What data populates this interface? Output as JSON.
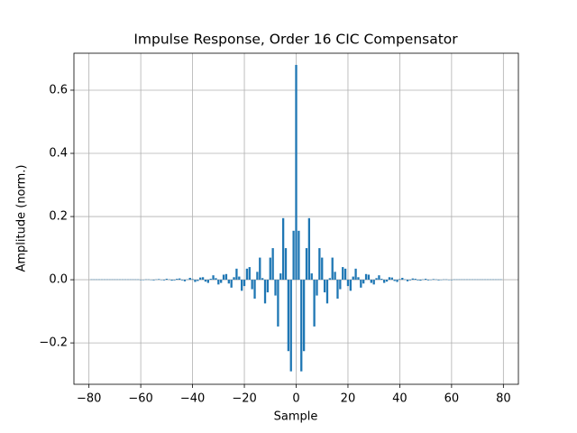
{
  "chart_data": {
    "type": "bar",
    "title": "Impulse Response, Order 16 CIC Compensator",
    "xlabel": "Sample",
    "ylabel": "Amplitude (norm.)",
    "color": "#1f77b4",
    "grid": true,
    "xlim": [
      -85.8,
      85.8
    ],
    "ylim": [
      -0.331,
      0.717
    ],
    "xticks": [
      {
        "value": -80,
        "label": "−80"
      },
      {
        "value": -60,
        "label": "−60"
      },
      {
        "value": -40,
        "label": "−40"
      },
      {
        "value": -20,
        "label": "−20"
      },
      0,
      20,
      40,
      60,
      80
    ],
    "yticks": [
      {
        "value": -0.2,
        "label": "−0.2"
      },
      {
        "value": 0,
        "label": "0.0"
      },
      0.2,
      0.4,
      0.6
    ],
    "x": [
      -79,
      -78,
      -77,
      -76,
      -75,
      -74,
      -73,
      -72,
      -71,
      -70,
      -69,
      -68,
      -67,
      -66,
      -65,
      -64,
      -63,
      -62,
      -61,
      -60,
      -59,
      -58,
      -57,
      -56,
      -55,
      -54,
      -53,
      -52,
      -51,
      -50,
      -49,
      -48,
      -47,
      -46,
      -45,
      -44,
      -43,
      -42,
      -41,
      -40,
      -39,
      -38,
      -37,
      -36,
      -35,
      -34,
      -33,
      -32,
      -31,
      -30,
      -29,
      -28,
      -27,
      -26,
      -25,
      -24,
      -23,
      -22,
      -21,
      -20,
      -19,
      -18,
      -17,
      -16,
      -15,
      -14,
      -13,
      -12,
      -11,
      -10,
      -9,
      -8,
      -7,
      -6,
      -5,
      -4,
      -3,
      -2,
      -1,
      0,
      1,
      2,
      3,
      4,
      5,
      6,
      7,
      8,
      9,
      10,
      11,
      12,
      13,
      14,
      15,
      16,
      17,
      18,
      19,
      20,
      21,
      22,
      23,
      24,
      25,
      26,
      27,
      28,
      29,
      30,
      31,
      32,
      33,
      34,
      35,
      36,
      37,
      38,
      39,
      40,
      41,
      42,
      43,
      44,
      45,
      46,
      47,
      48,
      49,
      50,
      51,
      52,
      53,
      54,
      55,
      56,
      57,
      58,
      59,
      60,
      61,
      62,
      63,
      64,
      65,
      66,
      67,
      68,
      69,
      70,
      71,
      72,
      73,
      74,
      75,
      76,
      77,
      78,
      79
    ],
    "values": [
      0.001,
      0.001,
      0.001,
      0.001,
      0.001,
      0.001,
      0.001,
      0.001,
      0.001,
      0.001,
      0.001,
      0.001,
      0.001,
      0.001,
      0.001,
      0.001,
      0.001,
      0.001,
      0.001,
      -0.001,
      -0.001,
      0.001,
      0.001,
      -0.001,
      -0.002,
      0.001,
      0.002,
      -0.001,
      -0.002,
      0.003,
      0.001,
      -0.003,
      -0.002,
      0.003,
      0.004,
      -0.002,
      -0.005,
      0.001,
      0.006,
      0.002,
      -0.007,
      -0.004,
      0.007,
      0.008,
      -0.006,
      -0.01,
      0.003,
      0.014,
      0.005,
      -0.015,
      -0.01,
      0.016,
      0.018,
      -0.012,
      -0.025,
      0.008,
      0.035,
      0.01,
      -0.035,
      -0.02,
      0.035,
      0.04,
      -0.03,
      -0.06,
      0.025,
      0.07,
      0.005,
      -0.075,
      -0.04,
      0.07,
      0.1,
      -0.05,
      -0.148,
      0.02,
      0.195,
      0.1,
      -0.226,
      -0.29,
      0.155,
      0.68,
      0.155,
      -0.29,
      -0.226,
      0.1,
      0.195,
      0.02,
      -0.148,
      -0.05,
      0.1,
      0.07,
      -0.04,
      -0.075,
      0.005,
      0.07,
      0.025,
      -0.06,
      -0.03,
      0.04,
      0.035,
      -0.02,
      -0.035,
      0.01,
      0.035,
      0.008,
      -0.025,
      -0.012,
      0.018,
      0.016,
      -0.01,
      -0.015,
      0.005,
      0.014,
      0.003,
      -0.01,
      -0.006,
      0.008,
      0.007,
      -0.004,
      -0.007,
      0.002,
      0.006,
      0.001,
      -0.005,
      -0.002,
      0.004,
      0.003,
      -0.002,
      -0.003,
      0.001,
      0.003,
      -0.002,
      -0.001,
      0.002,
      0.001,
      -0.002,
      -0.001,
      0.001,
      0.001,
      -0.001,
      -0.001,
      0.001,
      0.001,
      0.001,
      0.001,
      0.001,
      0.001,
      0.001,
      0.001,
      0.001,
      0.001,
      0.001,
      0.001,
      0.001,
      0.001,
      0.001,
      0.001,
      0.001,
      0.001,
      0.001
    ]
  }
}
